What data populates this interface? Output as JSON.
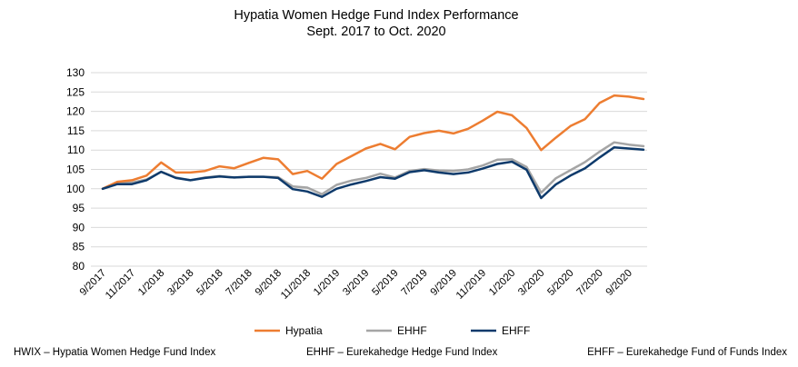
{
  "chart_data": {
    "type": "line",
    "title": "Hypatia Women Hedge Fund Index Performance",
    "subtitle": "Sept. 2017 to Oct. 2020",
    "xlabel": "",
    "ylabel": "",
    "ylim": [
      80,
      130
    ],
    "yticks": [
      80,
      85,
      90,
      95,
      100,
      105,
      110,
      115,
      120,
      125,
      130
    ],
    "grid": true,
    "legend_position": "bottom",
    "x": [
      "9/2017",
      "10/2017",
      "11/2017",
      "12/2017",
      "1/2018",
      "2/2018",
      "3/2018",
      "4/2018",
      "5/2018",
      "6/2018",
      "7/2018",
      "8/2018",
      "9/2018",
      "10/2018",
      "11/2018",
      "12/2018",
      "1/2019",
      "2/2019",
      "3/2019",
      "4/2019",
      "5/2019",
      "6/2019",
      "7/2019",
      "8/2019",
      "9/2019",
      "10/2019",
      "11/2019",
      "12/2019",
      "1/2020",
      "2/2020",
      "3/2020",
      "4/2020",
      "5/2020",
      "6/2020",
      "7/2020",
      "8/2020",
      "9/2020",
      "10/2020"
    ],
    "xtick_labels": [
      "9/2017",
      "11/2017",
      "1/2018",
      "3/2018",
      "5/2018",
      "7/2018",
      "9/2018",
      "11/2018",
      "1/2019",
      "3/2019",
      "5/2019",
      "7/2019",
      "9/2019",
      "11/2019",
      "1/2020",
      "3/2020",
      "5/2020",
      "7/2020",
      "9/2020"
    ],
    "series": [
      {
        "name": "Hypatia",
        "color": "#ED7D31",
        "values": [
          100,
          101.8,
          102.2,
          103.4,
          106.8,
          104.2,
          104.2,
          104.6,
          105.8,
          105.3,
          106.7,
          108.0,
          107.6,
          103.8,
          104.6,
          102.6,
          106.4,
          108.4,
          110.4,
          111.6,
          110.2,
          113.4,
          114.4,
          115.0,
          114.3,
          115.5,
          117.6,
          119.9,
          119.0,
          115.7,
          110.0,
          113.2,
          116.2,
          118.0,
          122.2,
          124.1,
          123.8,
          123.2
        ]
      },
      {
        "name": "EHHF",
        "color": "#A5A5A5",
        "values": [
          100,
          101.6,
          101.6,
          102.4,
          104.4,
          102.9,
          102.2,
          102.9,
          103.3,
          102.9,
          103.1,
          103.1,
          103.0,
          100.6,
          100.3,
          98.6,
          101.0,
          102.1,
          102.8,
          103.9,
          102.9,
          104.6,
          105.1,
          104.7,
          104.6,
          105.0,
          106.0,
          107.5,
          107.6,
          105.6,
          99.0,
          102.7,
          104.8,
          106.9,
          109.6,
          112.0,
          111.4,
          111.0
        ]
      },
      {
        "name": "EHFF",
        "color": "#0E3A6B",
        "values": [
          100,
          101.2,
          101.2,
          102.2,
          104.4,
          102.8,
          102.2,
          102.8,
          103.2,
          102.9,
          103.1,
          103.1,
          102.8,
          99.9,
          99.3,
          97.9,
          100.0,
          101.1,
          102.0,
          103.0,
          102.6,
          104.3,
          104.8,
          104.2,
          103.8,
          104.2,
          105.2,
          106.4,
          107.0,
          104.9,
          97.6,
          101.1,
          103.4,
          105.3,
          108.1,
          110.7,
          110.4,
          110.1
        ]
      }
    ],
    "footnotes": [
      "HWIX – Hypatia Women Hedge Fund Index",
      "EHHF – Eurekahedge Hedge Fund Index",
      "EHFF – Eurekahedge Fund of Funds Index"
    ]
  }
}
